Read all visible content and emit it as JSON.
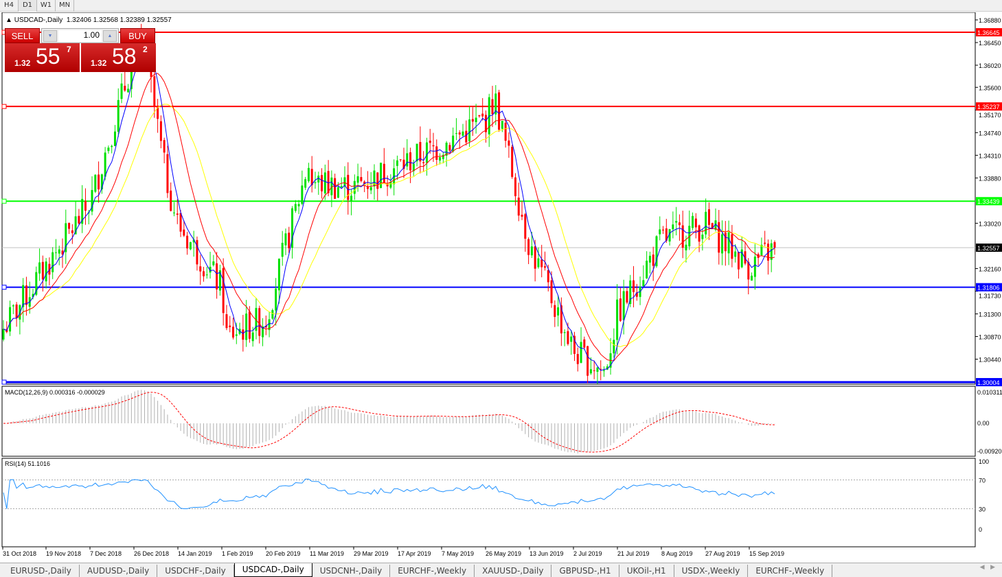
{
  "timeframes": [
    "H4",
    "D1",
    "W1",
    "MN"
  ],
  "active_timeframe": "D1",
  "header": {
    "symbol": "USDCAD-,Daily",
    "ohlc": "1.32406 1.32568 1.32389 1.32557"
  },
  "trade_panel": {
    "sell_label": "SELL",
    "buy_label": "BUY",
    "lot": "1.00",
    "sell_big": "1.32",
    "sell_mid": "55",
    "sell_sup": "7",
    "buy_big": "1.32",
    "buy_mid": "58",
    "buy_sup": "2"
  },
  "price_axis": [
    "1.36880",
    "1.36450",
    "1.36020",
    "1.35600",
    "1.35170",
    "1.34740",
    "1.34310",
    "1.33880",
    "1.33020",
    "1.32160",
    "1.31730",
    "1.31300",
    "1.30870",
    "1.30440"
  ],
  "hlines": [
    {
      "price": "1.36645",
      "color": "#ff0000"
    },
    {
      "price": "1.35237",
      "color": "#ff0000"
    },
    {
      "price": "1.33439",
      "color": "#00ff00"
    },
    {
      "price": "1.31806",
      "color": "#0000ff"
    },
    {
      "price": "1.30004",
      "color": "#0000ff"
    }
  ],
  "current_price": "1.32557",
  "macd": {
    "label": "MACD(12,26,9) 0.000316 -0.000029",
    "axis": [
      "0.010311",
      "0.00",
      "-0.00920"
    ]
  },
  "rsi": {
    "label": "RSI(14) 51.1016",
    "axis": [
      "100",
      "70",
      "30",
      "0"
    ]
  },
  "chart_data": {
    "type": "candlestick",
    "x_ticks": [
      "31 Oct 2018",
      "19 Nov 2018",
      "7 Dec 2018",
      "26 Dec 2018",
      "14 Jan 2019",
      "1 Feb 2019",
      "20 Feb 2019",
      "11 Mar 2019",
      "29 Mar 2019",
      "17 Apr 2019",
      "7 May 2019",
      "26 May 2019",
      "13 Jun 2019",
      "2 Jul 2019",
      "21 Jul 2019",
      "8 Aug 2019",
      "27 Aug 2019",
      "15 Sep 2019"
    ],
    "approx_close_at_ticks": [
      1.31,
      1.322,
      1.334,
      1.362,
      1.33,
      1.318,
      1.312,
      1.338,
      1.337,
      1.341,
      1.345,
      1.35,
      1.326,
      1.306,
      1.313,
      1.327,
      1.33,
      1.322
    ],
    "last_close": 1.32557,
    "ylim": [
      1.2985,
      1.3702
    ],
    "colors": {
      "up": "#00e000",
      "down": "#ff0000",
      "ma_fast": "#0000ff",
      "ma_mid": "#ff0000",
      "ma_slow": "#ffff00"
    }
  },
  "tabs": [
    "EURUSD-,Daily",
    "AUDUSD-,Daily",
    "USDCHF-,Daily",
    "USDCAD-,Daily",
    "USDCNH-,Daily",
    "EURCHF-,Weekly",
    "XAUUSD-,Daily",
    "GBPUSD-,H1",
    "UKOil-,H1",
    "USDX-,Weekly",
    "EURCHF-,Weekly"
  ],
  "active_tab": "USDCAD-,Daily"
}
